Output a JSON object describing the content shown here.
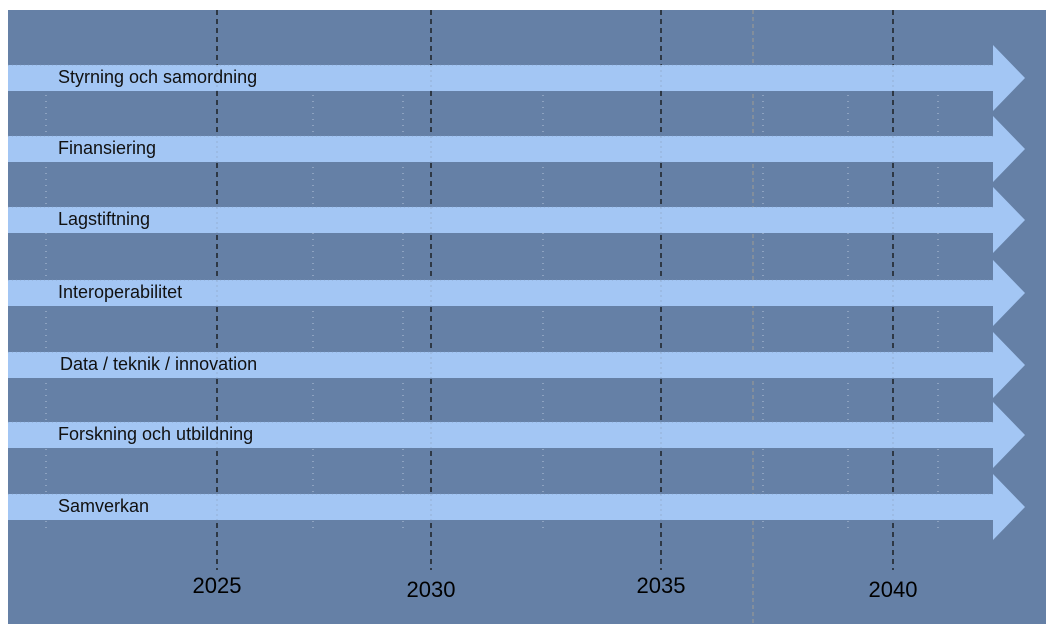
{
  "colors": {
    "background": "#6580a6",
    "arrow_fill": "#a3c6f4",
    "dashed_line": "#111111",
    "dotted_line": "#c9d6e6"
  },
  "rows": [
    {
      "label": "Styrning och samordning"
    },
    {
      "label": "Finansiering"
    },
    {
      "label": "Lagstiftning"
    },
    {
      "label": "Interoperabilitet"
    },
    {
      "label": "Data / teknik / innovation"
    },
    {
      "label": "Forskning och utbildning"
    },
    {
      "label": "Samverkan"
    }
  ],
  "timeline": {
    "years": [
      "2025",
      "2030",
      "2035",
      "2040"
    ]
  }
}
